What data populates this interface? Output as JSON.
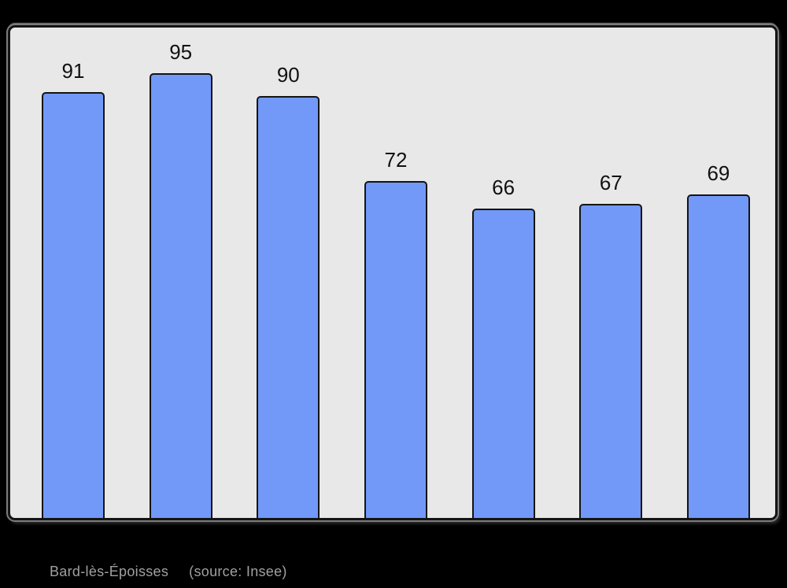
{
  "colors": {
    "page_bg": "#000000",
    "plot_bg": "#e8e8e8",
    "frame_border": "#141414",
    "bar_fill": "#7299f8",
    "bar_border": "#141414",
    "value_label": "#111111",
    "caption_text": "#a0a0a0"
  },
  "caption": {
    "title": "Bard-lès-Époisses",
    "source": "(source: Insee)"
  },
  "chart_data": {
    "type": "bar",
    "values": [
      91,
      95,
      90,
      72,
      66,
      67,
      69
    ],
    "data_labels": [
      91,
      95,
      90,
      72,
      66,
      67,
      69
    ],
    "title": "Bard-lès-Époisses",
    "source_note": "(source: Insee)",
    "xlabel": "",
    "ylabel": "",
    "ylim": [
      0,
      104
    ],
    "grid": false,
    "legend": false,
    "axes_visible": false,
    "bar_count": 7
  }
}
